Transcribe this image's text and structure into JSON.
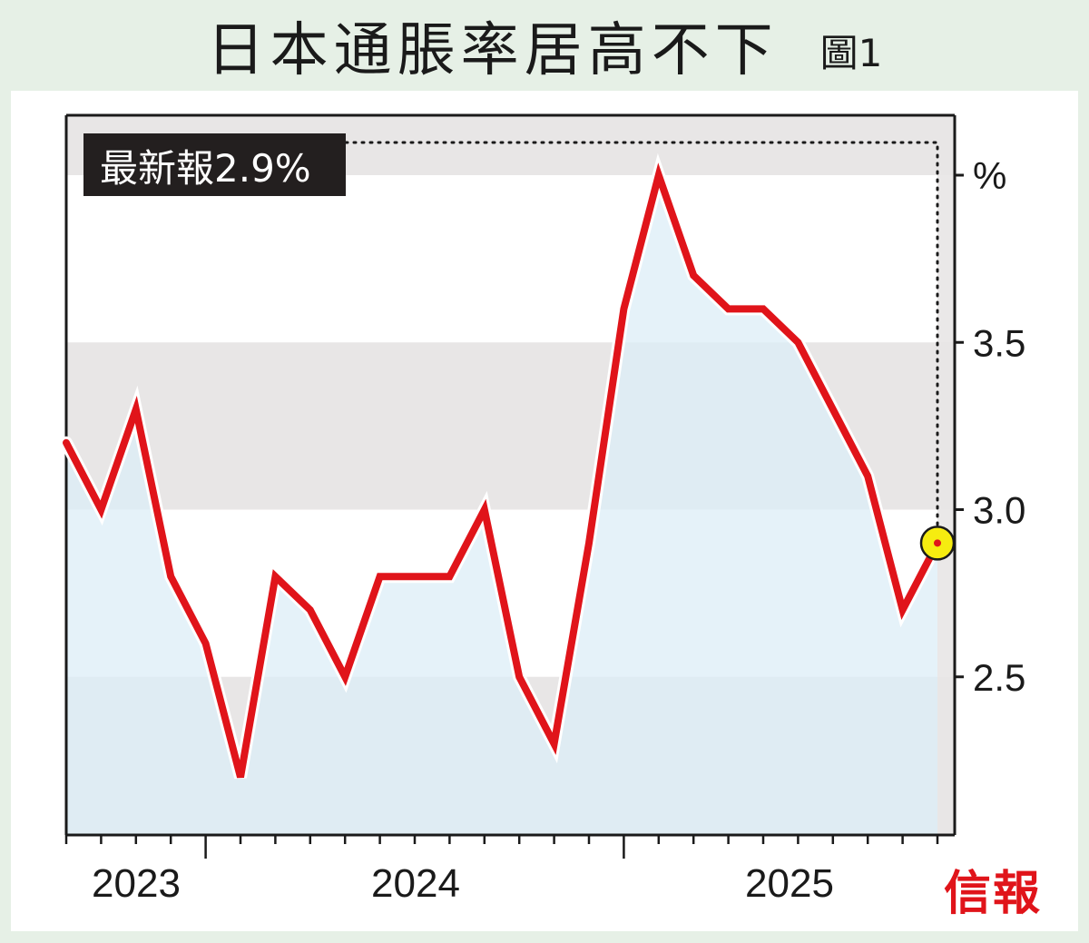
{
  "title": "日本通脹率居高不下",
  "figure_label": "圖1",
  "brand": "信報",
  "latest_label": "最新報2.9%",
  "colors": {
    "line": "#e0141a",
    "area": "#dcedf7",
    "band": "#e8e6e6",
    "marker": "#f6ec10",
    "background": "#e6f0e6"
  },
  "chart_data": {
    "type": "line",
    "title": "日本通脹率居高不下",
    "unit_label": "%",
    "x_tick_labels": [
      "2023",
      "2024",
      "2025"
    ],
    "y_tick_labels": [
      "%",
      "3.5",
      "3.0",
      "2.5"
    ],
    "ylim": [
      2.0,
      4.0
    ],
    "y_ticks": [
      2.5,
      3.0,
      3.5,
      4.0
    ],
    "series": [
      {
        "values": [
          3.2,
          3.0,
          3.3,
          2.8,
          2.6,
          2.2,
          2.8,
          2.7,
          2.5,
          2.8,
          2.8,
          2.8,
          3.0,
          2.5,
          2.3,
          2.9,
          3.6,
          4.0,
          3.7,
          3.6,
          3.6,
          3.5,
          3.3,
          3.1,
          2.7,
          2.9
        ]
      }
    ],
    "latest_value": 2.9,
    "grid": "alternating horizontal bands",
    "axis_side": "right"
  }
}
